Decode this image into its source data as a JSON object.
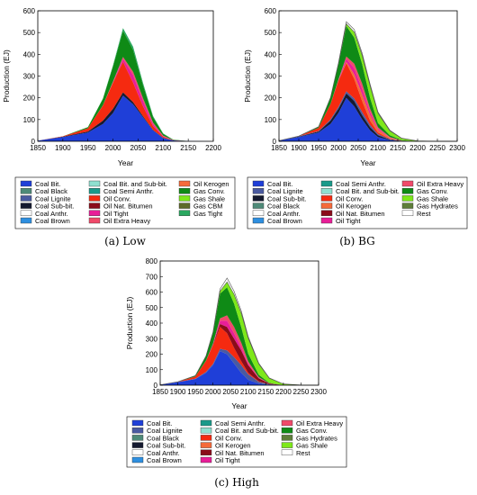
{
  "colors": {
    "Coal Bit.": "#1f3fd8",
    "Coal Black": "#4e8a78",
    "Coal Lignite": "#4a5aa0",
    "Coal Sub-bit.": "#151a30",
    "Coal Anthr.": "#ffffff",
    "Coal Brown": "#2e8fe0",
    "Coal Bit. and Sub-bit.": "#8fe0d0",
    "Coal Semi Anthr.": "#1a9a8a",
    "Oil Conv.": "#f52a10",
    "Oil Nat. Bitumen": "#8a0c1a",
    "Oil Tight": "#e81e98",
    "Oil Extra Heavy": "#f04a6a",
    "Oil Kerogen": "#f56a3a",
    "Gas Conv.": "#0f8a16",
    "Gas Shale": "#7ee81a",
    "Gas CBM": "#5e6a2a",
    "Gas Tight": "#2aa860",
    "Gas Hydrates": "#5e7e3a",
    "Rest": "#ffffff"
  },
  "chart_data": [
    {
      "type": "area",
      "name": "Low",
      "caption": "(a)  Low",
      "xlabel": "Year",
      "ylabel": "Production (EJ)",
      "xlim": [
        1850,
        2200
      ],
      "ylim": [
        0,
        600
      ],
      "xticks": [
        1850,
        1900,
        1950,
        2000,
        2050,
        2100,
        2150,
        2200
      ],
      "yticks": [
        0,
        100,
        200,
        300,
        400,
        500,
        600
      ],
      "x": [
        1850,
        1900,
        1950,
        1980,
        2000,
        2020,
        2040,
        2060,
        2080,
        2100,
        2120,
        2150,
        2200
      ],
      "series": [
        {
          "name": "Coal Bit.",
          "values": [
            3,
            20,
            40,
            80,
            130,
            210,
            170,
            110,
            50,
            15,
            4,
            1,
            0
          ]
        },
        {
          "name": "Coal Sub-bit.",
          "values": [
            0,
            2,
            5,
            15,
            20,
            15,
            10,
            5,
            2,
            1,
            0,
            0,
            0
          ]
        },
        {
          "name": "Oil Conv.",
          "values": [
            0,
            1,
            15,
            70,
            120,
            140,
            90,
            45,
            18,
            5,
            1,
            0,
            0
          ]
        },
        {
          "name": "Oil Tight",
          "values": [
            0,
            0,
            0,
            0,
            2,
            15,
            35,
            25,
            10,
            3,
            1,
            0,
            0
          ]
        },
        {
          "name": "Oil Extra Heavy",
          "values": [
            0,
            0,
            0,
            1,
            3,
            8,
            15,
            12,
            6,
            2,
            0,
            0,
            0
          ]
        },
        {
          "name": "Gas Conv.",
          "values": [
            0,
            0,
            5,
            30,
            70,
            120,
            100,
            60,
            25,
            8,
            2,
            0,
            0
          ]
        },
        {
          "name": "Gas Tight",
          "values": [
            0,
            0,
            0,
            1,
            5,
            12,
            15,
            10,
            5,
            2,
            0,
            0,
            0
          ]
        }
      ],
      "legend": [
        "Coal Bit.",
        "Coal Bit. and Sub-bit.",
        "Oil Kerogen",
        "Coal Black",
        "Coal Semi Anthr.",
        "Gas Conv.",
        "Coal Lignite",
        "Oil Conv.",
        "Gas Shale",
        "Coal Sub-bit.",
        "Oil Nat. Bitumen",
        "Gas CBM",
        "Coal Anthr.",
        "Oil Tight",
        "Gas Tight",
        "Coal Brown",
        "Oil Extra Heavy"
      ]
    },
    {
      "type": "area",
      "name": "BG",
      "caption": "(b)  BG",
      "xlabel": "Year",
      "ylabel": "Production (EJ)",
      "xlim": [
        1850,
        2300
      ],
      "ylim": [
        0,
        600
      ],
      "xticks": [
        1850,
        1900,
        1950,
        2000,
        2050,
        2100,
        2150,
        2200,
        2250,
        2300
      ],
      "yticks": [
        0,
        100,
        200,
        300,
        400,
        500,
        600
      ],
      "x": [
        1850,
        1900,
        1950,
        1980,
        2000,
        2020,
        2040,
        2060,
        2080,
        2100,
        2130,
        2160,
        2200,
        2250,
        2300
      ],
      "series": [
        {
          "name": "Coal Bit.",
          "values": [
            3,
            20,
            40,
            80,
            130,
            200,
            160,
            100,
            50,
            20,
            5,
            1,
            0,
            0,
            0
          ]
        },
        {
          "name": "Coal Sub-bit.",
          "values": [
            0,
            2,
            5,
            15,
            20,
            20,
            25,
            20,
            15,
            8,
            3,
            1,
            0,
            0,
            0
          ]
        },
        {
          "name": "Coal Lignite",
          "values": [
            0,
            1,
            2,
            5,
            8,
            10,
            12,
            15,
            10,
            5,
            2,
            0,
            0,
            0,
            0
          ]
        },
        {
          "name": "Oil Conv.",
          "values": [
            0,
            1,
            15,
            70,
            120,
            130,
            90,
            50,
            20,
            8,
            2,
            0,
            0,
            0,
            0
          ]
        },
        {
          "name": "Oil Kerogen",
          "values": [
            0,
            0,
            0,
            0,
            0,
            5,
            20,
            30,
            25,
            12,
            4,
            1,
            0,
            0,
            0
          ]
        },
        {
          "name": "Oil Tight",
          "values": [
            0,
            0,
            0,
            0,
            3,
            15,
            30,
            25,
            15,
            5,
            2,
            0,
            0,
            0,
            0
          ]
        },
        {
          "name": "Oil Extra Heavy",
          "values": [
            0,
            0,
            0,
            1,
            3,
            10,
            20,
            25,
            15,
            6,
            2,
            0,
            0,
            0,
            0
          ]
        },
        {
          "name": "Gas Conv.",
          "values": [
            0,
            0,
            5,
            30,
            70,
            140,
            120,
            90,
            50,
            20,
            8,
            2,
            0,
            0,
            0
          ]
        },
        {
          "name": "Gas Shale",
          "values": [
            0,
            0,
            0,
            0,
            2,
            10,
            25,
            40,
            55,
            45,
            20,
            8,
            2,
            0,
            0
          ]
        },
        {
          "name": "Rest",
          "values": [
            0,
            0,
            0,
            0,
            3,
            10,
            12,
            10,
            8,
            5,
            3,
            1,
            0,
            0,
            0
          ]
        }
      ],
      "legend": [
        "Coal Bit.",
        "Coal Semi Anthr.",
        "Oil Extra Heavy",
        "Coal Lignite",
        "Coal Bit. and Sub-bit.",
        "Gas Conv.",
        "Coal Sub-bit.",
        "Oil Conv.",
        "Gas Shale",
        "Coal Black",
        "Oil Kerogen",
        "Gas Hydrates",
        "Coal Anthr.",
        "Oil Nat. Bitumen",
        "Rest",
        "Coal Brown",
        "Oil Tight"
      ]
    },
    {
      "type": "area",
      "name": "High",
      "caption": "(c)  High",
      "xlabel": "Year",
      "ylabel": "Production (EJ)",
      "xlim": [
        1850,
        2300
      ],
      "ylim": [
        0,
        800
      ],
      "xticks": [
        1850,
        1900,
        1950,
        2000,
        2050,
        2100,
        2150,
        2200,
        2250,
        2300
      ],
      "yticks": [
        0,
        100,
        200,
        300,
        400,
        500,
        600,
        700,
        800
      ],
      "x": [
        1850,
        1900,
        1950,
        1980,
        2000,
        2020,
        2040,
        2060,
        2080,
        2100,
        2130,
        2160,
        2200,
        2250,
        2300
      ],
      "series": [
        {
          "name": "Coal Bit.",
          "values": [
            3,
            20,
            40,
            80,
            130,
            220,
            200,
            140,
            80,
            35,
            10,
            3,
            0,
            0,
            0
          ]
        },
        {
          "name": "Coal Lignite",
          "values": [
            0,
            1,
            2,
            5,
            8,
            15,
            25,
            40,
            50,
            35,
            12,
            3,
            0,
            0,
            0
          ]
        },
        {
          "name": "Oil Conv.",
          "values": [
            0,
            1,
            15,
            70,
            120,
            140,
            110,
            60,
            25,
            10,
            3,
            0,
            0,
            0,
            0
          ]
        },
        {
          "name": "Oil Nat. Bitumen",
          "values": [
            0,
            0,
            0,
            1,
            5,
            20,
            40,
            60,
            70,
            50,
            20,
            5,
            0,
            0,
            0
          ]
        },
        {
          "name": "Oil Tight",
          "values": [
            0,
            0,
            0,
            0,
            3,
            20,
            40,
            35,
            20,
            8,
            2,
            0,
            0,
            0,
            0
          ]
        },
        {
          "name": "Oil Extra Heavy",
          "values": [
            0,
            0,
            0,
            1,
            3,
            15,
            35,
            40,
            30,
            15,
            5,
            1,
            0,
            0,
            0
          ]
        },
        {
          "name": "Gas Conv.",
          "values": [
            0,
            0,
            5,
            30,
            70,
            160,
            180,
            150,
            100,
            50,
            15,
            3,
            0,
            0,
            0
          ]
        },
        {
          "name": "Gas Shale",
          "values": [
            0,
            0,
            0,
            0,
            2,
            15,
            35,
            60,
            90,
            100,
            70,
            30,
            8,
            1,
            0
          ]
        },
        {
          "name": "Rest",
          "values": [
            0,
            0,
            0,
            0,
            3,
            15,
            25,
            20,
            15,
            10,
            5,
            2,
            0,
            0,
            0
          ]
        }
      ],
      "legend": [
        "Coal Bit.",
        "Coal Semi Anthr.",
        "Oil Extra Heavy",
        "Coal Lignite",
        "Coal Bit. and Sub-bit.",
        "Gas Conv.",
        "Coal Black",
        "Oil Conv.",
        "Gas Hydrates",
        "Coal Sub-bit.",
        "Oil Kerogen",
        "Gas Shale",
        "Coal Anthr.",
        "Oil Nat. Bitumen",
        "Rest",
        "Coal Brown",
        "Oil Tight"
      ]
    }
  ]
}
